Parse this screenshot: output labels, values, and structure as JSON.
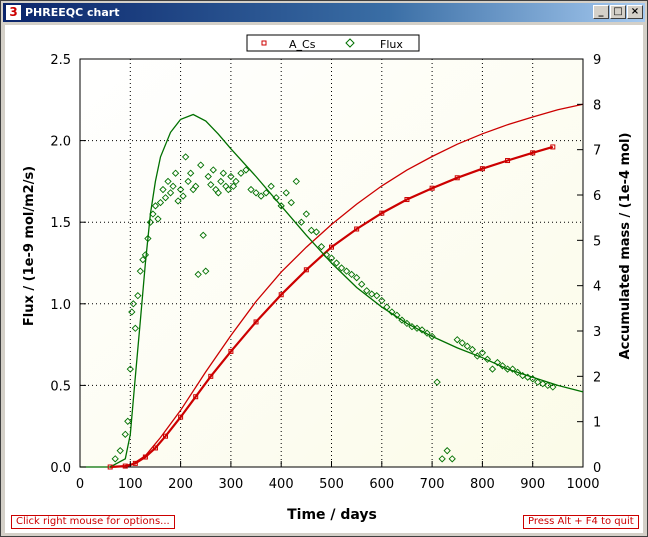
{
  "window": {
    "title": "PHREEQC chart",
    "icon_label": "3",
    "buttons": {
      "minimize": "_",
      "maximize": "□",
      "close": "×"
    }
  },
  "status": {
    "left_hint": "Click right mouse for options...",
    "right_hint": "Press Alt + F4 to quit"
  },
  "colors": {
    "a_cs": "#cc0000",
    "flux": "#007000",
    "plot_bg": "#fbfbe8"
  },
  "chart_data": {
    "type": "scatter",
    "title": "",
    "xlabel": "Time / days",
    "ylabel": "Flux / (1e-9 mol/m2/s)",
    "y2label": "Accumulated mass / (1e-4 mol)",
    "xlim": [
      0,
      1000
    ],
    "ylim": [
      0,
      2.5
    ],
    "y2lim": [
      0,
      9
    ],
    "grid": true,
    "legend": "top-center",
    "x_ticks": [
      "0",
      "100",
      "200",
      "300",
      "400",
      "500",
      "600",
      "700",
      "800",
      "900",
      "1000"
    ],
    "y_ticks": [
      "0.0",
      "0.5",
      "1.0",
      "1.5",
      "2.0",
      "2.5"
    ],
    "y2_ticks": [
      "0",
      "1",
      "2",
      "3",
      "4",
      "5",
      "6",
      "7",
      "8",
      "9"
    ],
    "series": [
      {
        "name": "A_Cs",
        "axis": "right",
        "marker": "square",
        "points": [
          [
            60,
            0
          ],
          [
            90,
            0.02
          ],
          [
            110,
            0.08
          ],
          [
            130,
            0.22
          ],
          [
            150,
            0.42
          ],
          [
            170,
            0.68
          ],
          [
            200,
            1.1
          ],
          [
            230,
            1.55
          ],
          [
            260,
            2.0
          ],
          [
            300,
            2.55
          ],
          [
            350,
            3.2
          ],
          [
            400,
            3.8
          ],
          [
            450,
            4.35
          ],
          [
            500,
            4.85
          ],
          [
            550,
            5.25
          ],
          [
            600,
            5.6
          ],
          [
            650,
            5.9
          ],
          [
            700,
            6.15
          ],
          [
            750,
            6.38
          ],
          [
            800,
            6.58
          ],
          [
            850,
            6.76
          ],
          [
            900,
            6.93
          ],
          [
            940,
            7.06
          ]
        ]
      },
      {
        "name": "",
        "axis": "right",
        "marker": "none",
        "points": [
          [
            70,
            0
          ],
          [
            100,
            0.03
          ],
          [
            130,
            0.25
          ],
          [
            160,
            0.65
          ],
          [
            200,
            1.25
          ],
          [
            250,
            2.1
          ],
          [
            300,
            2.9
          ],
          [
            350,
            3.65
          ],
          [
            400,
            4.3
          ],
          [
            450,
            4.85
          ],
          [
            500,
            5.35
          ],
          [
            550,
            5.8
          ],
          [
            600,
            6.2
          ],
          [
            650,
            6.55
          ],
          [
            700,
            6.85
          ],
          [
            750,
            7.12
          ],
          [
            800,
            7.35
          ],
          [
            850,
            7.55
          ],
          [
            900,
            7.72
          ],
          [
            950,
            7.88
          ],
          [
            1000,
            8.0
          ]
        ]
      },
      {
        "name": "Flux",
        "axis": "left",
        "marker": "diamond",
        "points": [
          [
            70,
            0.05
          ],
          [
            80,
            0.1
          ],
          [
            90,
            0.2
          ],
          [
            95,
            0.28
          ],
          [
            100,
            0.6
          ],
          [
            103,
            0.95
          ],
          [
            106,
            1.0
          ],
          [
            110,
            0.85
          ],
          [
            115,
            1.05
          ],
          [
            120,
            1.2
          ],
          [
            125,
            1.27
          ],
          [
            130,
            1.3
          ],
          [
            135,
            1.4
          ],
          [
            140,
            1.5
          ],
          [
            145,
            1.55
          ],
          [
            150,
            1.6
          ],
          [
            155,
            1.52
          ],
          [
            160,
            1.62
          ],
          [
            165,
            1.7
          ],
          [
            170,
            1.65
          ],
          [
            175,
            1.75
          ],
          [
            180,
            1.68
          ],
          [
            185,
            1.72
          ],
          [
            190,
            1.8
          ],
          [
            195,
            1.63
          ],
          [
            200,
            1.7
          ],
          [
            205,
            1.66
          ],
          [
            210,
            1.9
          ],
          [
            215,
            1.75
          ],
          [
            220,
            1.8
          ],
          [
            225,
            1.7
          ],
          [
            230,
            1.72
          ],
          [
            235,
            1.18
          ],
          [
            240,
            1.85
          ],
          [
            245,
            1.42
          ],
          [
            250,
            1.2
          ],
          [
            255,
            1.78
          ],
          [
            260,
            1.73
          ],
          [
            265,
            1.82
          ],
          [
            270,
            1.7
          ],
          [
            275,
            1.68
          ],
          [
            280,
            1.75
          ],
          [
            285,
            1.8
          ],
          [
            290,
            1.72
          ],
          [
            295,
            1.7
          ],
          [
            300,
            1.78
          ],
          [
            305,
            1.72
          ],
          [
            310,
            1.75
          ],
          [
            320,
            1.8
          ],
          [
            330,
            1.82
          ],
          [
            340,
            1.7
          ],
          [
            350,
            1.68
          ],
          [
            360,
            1.66
          ],
          [
            370,
            1.68
          ],
          [
            380,
            1.72
          ],
          [
            390,
            1.65
          ],
          [
            400,
            1.6
          ],
          [
            410,
            1.68
          ],
          [
            420,
            1.62
          ],
          [
            430,
            1.75
          ],
          [
            440,
            1.5
          ],
          [
            450,
            1.55
          ],
          [
            460,
            1.45
          ],
          [
            470,
            1.44
          ],
          [
            480,
            1.35
          ],
          [
            490,
            1.3
          ],
          [
            500,
            1.28
          ],
          [
            510,
            1.25
          ],
          [
            520,
            1.22
          ],
          [
            530,
            1.2
          ],
          [
            540,
            1.18
          ],
          [
            550,
            1.16
          ],
          [
            560,
            1.12
          ],
          [
            570,
            1.08
          ],
          [
            580,
            1.06
          ],
          [
            590,
            1.05
          ],
          [
            600,
            1.02
          ],
          [
            610,
            0.98
          ],
          [
            620,
            0.95
          ],
          [
            630,
            0.93
          ],
          [
            640,
            0.9
          ],
          [
            650,
            0.88
          ],
          [
            660,
            0.86
          ],
          [
            670,
            0.85
          ],
          [
            680,
            0.84
          ],
          [
            690,
            0.82
          ],
          [
            700,
            0.8
          ],
          [
            710,
            0.52
          ],
          [
            720,
            0.05
          ],
          [
            730,
            0.1
          ],
          [
            740,
            0.05
          ],
          [
            750,
            0.78
          ],
          [
            760,
            0.76
          ],
          [
            770,
            0.74
          ],
          [
            780,
            0.72
          ],
          [
            790,
            0.68
          ],
          [
            800,
            0.7
          ],
          [
            810,
            0.66
          ],
          [
            820,
            0.6
          ],
          [
            830,
            0.64
          ],
          [
            840,
            0.62
          ],
          [
            850,
            0.6
          ],
          [
            860,
            0.6
          ],
          [
            870,
            0.58
          ],
          [
            880,
            0.56
          ],
          [
            890,
            0.55
          ],
          [
            900,
            0.54
          ],
          [
            910,
            0.52
          ],
          [
            920,
            0.51
          ],
          [
            930,
            0.5
          ],
          [
            940,
            0.49
          ]
        ]
      },
      {
        "name": "",
        "axis": "left",
        "marker": "none",
        "points": [
          [
            0,
            0
          ],
          [
            60,
            0
          ],
          [
            90,
            0.05
          ],
          [
            100,
            0.2
          ],
          [
            110,
            0.55
          ],
          [
            120,
            0.9
          ],
          [
            130,
            1.25
          ],
          [
            140,
            1.55
          ],
          [
            150,
            1.75
          ],
          [
            160,
            1.9
          ],
          [
            180,
            2.05
          ],
          [
            200,
            2.13
          ],
          [
            225,
            2.16
          ],
          [
            250,
            2.12
          ],
          [
            275,
            2.04
          ],
          [
            300,
            1.95
          ],
          [
            350,
            1.78
          ],
          [
            400,
            1.6
          ],
          [
            450,
            1.42
          ],
          [
            500,
            1.25
          ],
          [
            550,
            1.1
          ],
          [
            600,
            0.98
          ],
          [
            650,
            0.88
          ],
          [
            700,
            0.8
          ],
          [
            750,
            0.73
          ],
          [
            800,
            0.67
          ],
          [
            850,
            0.6
          ],
          [
            900,
            0.55
          ],
          [
            950,
            0.5
          ],
          [
            1000,
            0.46
          ]
        ]
      }
    ]
  }
}
